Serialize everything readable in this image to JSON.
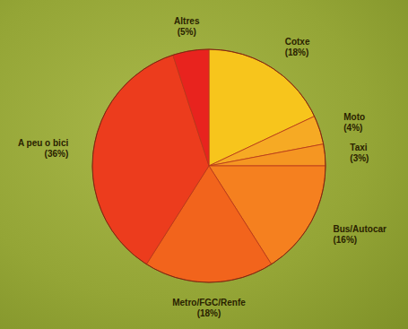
{
  "chart_data": {
    "type": "pie",
    "categories": [
      "Cotxe",
      "Moto",
      "Taxi",
      "Bus/Autocar",
      "Metro/FGC/Renfe",
      "A peu o bici",
      "Altres"
    ],
    "values": [
      18,
      4,
      3,
      16,
      18,
      36,
      5
    ],
    "value_labels": [
      "(18%)",
      "(4%)",
      "(3%)",
      "(16%)",
      "(18%)",
      "(36%)",
      "(5%)"
    ],
    "colors": [
      "#f7c51c",
      "#f6aa24",
      "#f59622",
      "#f5801f",
      "#f2641c",
      "#ec3c1d",
      "#e8231e"
    ],
    "data_labels": true
  }
}
